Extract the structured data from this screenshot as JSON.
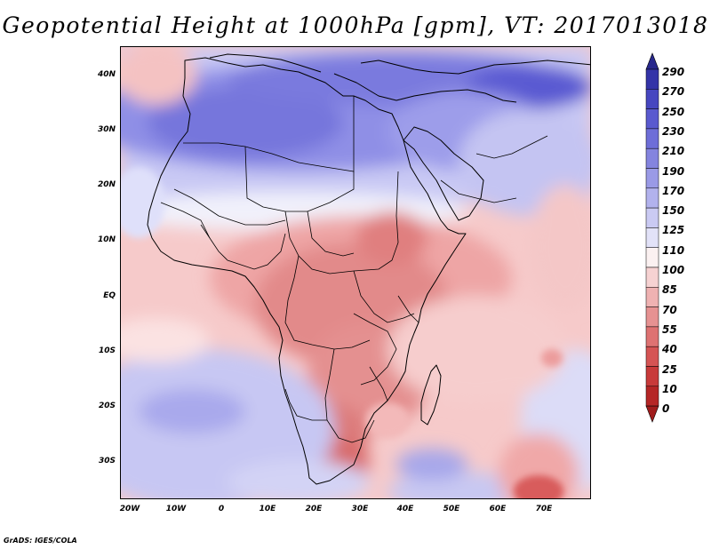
{
  "title": "Geopotential Height at 1000hPa [gpm], VT: 2017013018",
  "credit": "GrADS: IGES/COLA",
  "map": {
    "region": "Africa and Arabian Peninsula",
    "lat_range": [
      -36,
      45
    ],
    "lon_range": [
      -22,
      80
    ],
    "lat_labels": [
      "40N",
      "30N",
      "20N",
      "10N",
      "EQ",
      "10S",
      "20S",
      "30S"
    ],
    "lon_labels": [
      "20W",
      "10W",
      "0",
      "10E",
      "20E",
      "30E",
      "40E",
      "50E",
      "60E",
      "70E"
    ]
  },
  "colorbar": {
    "levels": [
      "290",
      "270",
      "250",
      "230",
      "210",
      "190",
      "170",
      "150",
      "125",
      "110",
      "100",
      "85",
      "70",
      "55",
      "40",
      "25",
      "10",
      "0"
    ],
    "top_color": "#28288c",
    "bottom_color": "#a01c1c"
  }
}
